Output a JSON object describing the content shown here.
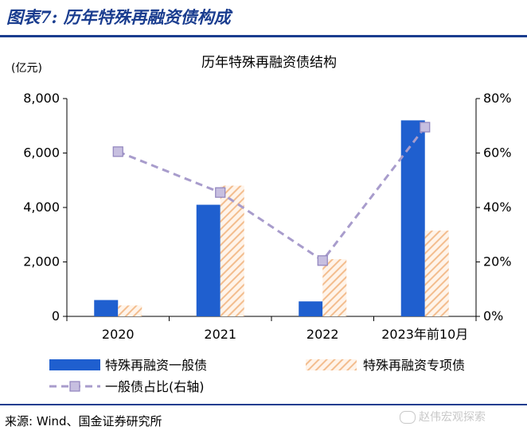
{
  "figure": {
    "label": "图表7: 历年特殊再融资债构成",
    "source": "来源: Wind、国金证券研究所",
    "watermark": "赵伟宏观探索"
  },
  "colors": {
    "general_bond": "#1f5fcf",
    "special_bond": "#f6c9a2",
    "ratio_line": "#a89ccc",
    "title_blue": "#1a3d8f"
  },
  "chart_data": {
    "type": "bar",
    "title": "历年特殊再融资债结构",
    "left_unit": "(亿元)",
    "categories": [
      "2020",
      "2021",
      "2022",
      "2023年前10月"
    ],
    "left_axis": {
      "ylim": [
        0,
        8000
      ],
      "ticks": [
        "0",
        "2,000",
        "4,000",
        "6,000",
        "8,000"
      ]
    },
    "right_axis": {
      "ylim": [
        0,
        80
      ],
      "ticks": [
        "0%",
        "20%",
        "40%",
        "60%",
        "80%"
      ]
    },
    "series": [
      {
        "name": "特殊再融资一般债",
        "kind": "bar",
        "style": "solid",
        "values": [
          600,
          4100,
          550,
          7200
        ]
      },
      {
        "name": "特殊再融资专项债",
        "kind": "bar",
        "style": "hatched",
        "values": [
          400,
          4800,
          2100,
          3150
        ]
      },
      {
        "name": "一般债占比(右轴)",
        "kind": "line",
        "axis": "right",
        "style": "dashed-square",
        "values": [
          60.5,
          45.5,
          20.5,
          69.5
        ]
      }
    ],
    "legend_position": "bottom",
    "grid": false
  }
}
